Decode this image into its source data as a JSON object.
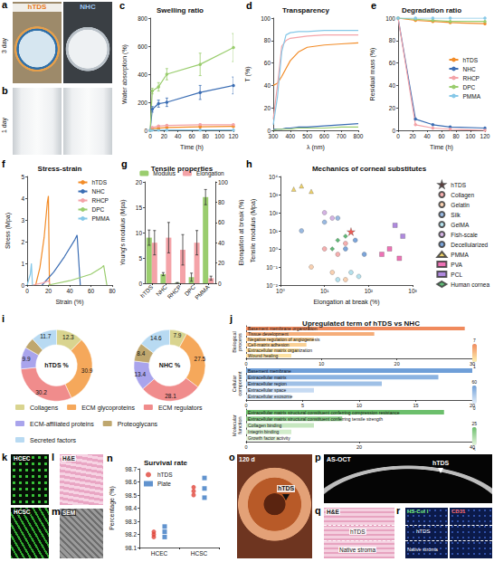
{
  "chart_data": [
    {
      "panel": "c",
      "type": "line",
      "title": "Swelling ratio",
      "x_label": "Time (h)",
      "y_label": "Water absorption (%)",
      "x": [
        0,
        3,
        12,
        24,
        72,
        120
      ],
      "xlim": [
        0,
        120
      ],
      "xticks": [
        0,
        20,
        40,
        60,
        80,
        100,
        120
      ],
      "ylim": [
        0,
        800
      ],
      "yticks": [
        0,
        200,
        400,
        600,
        800
      ],
      "marker": "circle",
      "grid": false,
      "series": [
        {
          "color": "#F28C28",
          "values": [
            0,
            10,
            15,
            20,
            25,
            28
          ],
          "errors": [
            0,
            3,
            4,
            4,
            5,
            5
          ]
        },
        {
          "color": "#3C6EB4",
          "values": [
            0,
            150,
            190,
            200,
            270,
            320
          ],
          "errors": [
            0,
            20,
            25,
            30,
            50,
            60
          ]
        },
        {
          "color": "#F4A3A8",
          "values": [
            0,
            20,
            30,
            35,
            40,
            40
          ],
          "errors": [
            0,
            5,
            5,
            5,
            6,
            6
          ]
        },
        {
          "color": "#9ACD6E",
          "values": [
            0,
            280,
            310,
            400,
            470,
            590
          ],
          "errors": [
            0,
            20,
            30,
            40,
            80,
            100
          ]
        },
        {
          "color": "#86C8E8",
          "values": [
            0,
            1,
            1,
            2,
            2,
            2
          ],
          "errors": [
            0,
            0,
            0,
            0,
            0,
            0
          ]
        }
      ]
    },
    {
      "panel": "d",
      "type": "line",
      "title": "Transparency",
      "x_label": "λ (nm)",
      "y_label": "T (%)",
      "x": [
        300,
        325,
        350,
        375,
        400,
        450,
        500,
        600,
        700,
        800
      ],
      "xlim": [
        300,
        800
      ],
      "xticks": [
        300,
        400,
        500,
        600,
        700,
        800
      ],
      "ylim": [
        0,
        100
      ],
      "yticks": [
        0,
        20,
        40,
        60,
        80,
        100
      ],
      "marker": "none",
      "grid": false,
      "series": [
        {
          "color": "#F28C28",
          "values": [
            40,
            42,
            48,
            55,
            62,
            70,
            74,
            76,
            77,
            78
          ]
        },
        {
          "color": "#3C6EB4",
          "values": [
            1,
            1,
            1,
            2,
            2,
            3,
            3,
            4,
            5,
            6
          ]
        },
        {
          "color": "#F4A3A8",
          "values": [
            10,
            40,
            75,
            80,
            82,
            83,
            84,
            85,
            85,
            85
          ]
        },
        {
          "color": "#9ACD6E",
          "values": [
            0,
            1,
            1,
            1,
            1,
            2,
            2,
            2,
            3,
            3
          ]
        },
        {
          "color": "#86C8E8",
          "values": [
            5,
            30,
            70,
            85,
            87,
            88,
            88,
            89,
            89,
            89
          ]
        }
      ]
    },
    {
      "panel": "e",
      "type": "line",
      "title": "Degradation ratio",
      "x_label": "Time (h)",
      "y_label": "Residual mass (%)",
      "x": [
        0,
        24,
        48,
        72,
        120
      ],
      "xlim": [
        0,
        120
      ],
      "xticks": [
        0,
        20,
        40,
        60,
        80,
        100,
        120
      ],
      "ylim": [
        0,
        100
      ],
      "yticks": [
        0,
        20,
        40,
        60,
        80,
        100
      ],
      "marker": "circle",
      "grid": false,
      "legend": "right",
      "series": [
        {
          "name": "hTDS",
          "color": "#F28C28",
          "values": [
            100,
            98,
            97,
            96,
            95
          ]
        },
        {
          "name": "NHC",
          "color": "#3C6EB4",
          "values": [
            100,
            10,
            5,
            3,
            2
          ]
        },
        {
          "name": "RHCP",
          "color": "#F4A3A8",
          "values": [
            100,
            5,
            2,
            1,
            0
          ]
        },
        {
          "name": "DPC",
          "color": "#9ACD6E",
          "values": [
            100,
            99,
            98,
            97,
            97
          ]
        },
        {
          "name": "PMMA",
          "color": "#86C8E8",
          "values": [
            100,
            100,
            100,
            100,
            100
          ]
        }
      ]
    },
    {
      "panel": "f",
      "type": "line",
      "title": "Stress-strain",
      "x_label": "Strain (%)",
      "y_label": "Stress (Mpa)",
      "xlim": [
        0,
        80
      ],
      "xticks": [
        0,
        20,
        40,
        60,
        80
      ],
      "ylim": [
        0,
        5
      ],
      "yticks": [
        0,
        1,
        2,
        3,
        4,
        5
      ],
      "marker": "none",
      "grid": false,
      "legend": "top-right",
      "series": [
        {
          "name": "hTDS",
          "color": "#F28C28",
          "x": [
            8,
            12,
            16,
            19,
            20,
            21
          ],
          "values": [
            0,
            0.8,
            2.2,
            3.8,
            4.1,
            0
          ]
        },
        {
          "name": "NHC",
          "color": "#3C6EB4",
          "x": [
            14,
            25,
            35,
            45,
            47,
            50
          ],
          "values": [
            0,
            0.6,
            1.3,
            2.1,
            2.3,
            0
          ]
        },
        {
          "name": "RHCP",
          "color": "#F4A3A8",
          "x": [
            5,
            15,
            20,
            22
          ],
          "values": [
            0,
            0.1,
            0.2,
            0
          ]
        },
        {
          "name": "DPC",
          "color": "#9ACD6E",
          "x": [
            20,
            40,
            60,
            70,
            72,
            75
          ],
          "values": [
            0,
            0.2,
            0.5,
            0.8,
            0.9,
            0
          ]
        },
        {
          "name": "PMMA",
          "color": "#86C8E8",
          "x": [
            0,
            3,
            4,
            5
          ],
          "values": [
            0,
            0.5,
            1,
            0
          ]
        }
      ]
    },
    {
      "panel": "g",
      "type": "bar",
      "title": "Tensile properties",
      "categories": [
        "hTDS",
        "NHC",
        "RHCP",
        "DPC",
        "PMMA"
      ],
      "y_label": "Young's modulus (Mpa)",
      "y2_label": "Elongation at break (%)",
      "ylim": [
        0,
        20
      ],
      "yticks": [
        0,
        5,
        10,
        15,
        20
      ],
      "y2lim": [
        0,
        100
      ],
      "y2ticks": [
        0,
        20,
        40,
        60,
        80,
        100
      ],
      "grid": false,
      "legend": "top",
      "series": [
        {
          "name": "Modulus",
          "color": "#9ACD6E",
          "values": [
            9,
            1.8,
            0.1,
            1.2,
            17
          ],
          "errors": [
            1.5,
            0.3,
            0.05,
            0.8,
            1.5
          ]
        },
        {
          "name": "Elongation",
          "color": "#F4A3A8",
          "axis": "y2",
          "values": [
            40,
            45,
            33,
            40,
            5
          ],
          "errors": [
            12,
            15,
            15,
            12,
            2
          ]
        }
      ]
    },
    {
      "panel": "h",
      "type": "scatter",
      "title": "Mechanics of corneal substitutes",
      "x_label": "Elongation at break (%)",
      "y_label": "Tensile modulus (Mpa)",
      "log": true,
      "grid": false,
      "legend": "right",
      "xlim": [
        1,
        1000
      ],
      "xticks": [
        {
          "value": 1,
          "label": "10⁰"
        },
        {
          "value": 10,
          "label": "10¹"
        },
        {
          "value": 100,
          "label": "10²"
        },
        {
          "value": 1000,
          "label": "10³"
        }
      ],
      "ylim": [
        0.01,
        10000
      ],
      "yticks": [
        {
          "value": 0.01,
          "label": "10⁻²"
        },
        {
          "value": 0.1,
          "label": "10⁻¹"
        },
        {
          "value": 1,
          "label": "10⁰"
        },
        {
          "value": 10,
          "label": "10¹"
        },
        {
          "value": 100,
          "label": "10²"
        },
        {
          "value": 1000,
          "label": "10³"
        },
        {
          "value": 10000,
          "label": "10⁴"
        }
      ],
      "series": [
        {
          "name": "hTDS",
          "color": "#E6332A",
          "marker": "star",
          "x": [
            40
          ],
          "values": [
            9
          ]
        },
        {
          "name": "Collagen",
          "color": "#F29B9B",
          "marker": "circle",
          "x": [
            10,
            20,
            30
          ],
          "values": [
            1,
            0.5,
            2
          ]
        },
        {
          "name": "Gelatin",
          "color": "#F7C59F",
          "marker": "circle",
          "x": [
            5,
            15,
            30
          ],
          "values": [
            0.1,
            0.05,
            0.02
          ]
        },
        {
          "name": "Silk",
          "color": "#7FA7D9",
          "marker": "circle",
          "x": [
            3,
            10,
            20
          ],
          "values": [
            10,
            30,
            50
          ]
        },
        {
          "name": "GelMA",
          "color": "#A3D9E8",
          "marker": "circle",
          "x": [
            20,
            40,
            60
          ],
          "values": [
            0.02,
            0.05,
            0.03
          ]
        },
        {
          "name": "Fish-scale",
          "color": "#C9A0DC",
          "marker": "circle",
          "x": [
            10,
            15
          ],
          "values": [
            100,
            50
          ]
        },
        {
          "name": "Decellularized",
          "color": "#5B8FD1",
          "marker": "circle",
          "x": [
            30,
            50,
            80
          ],
          "values": [
            1,
            3,
            0.5
          ]
        },
        {
          "name": "PMMA",
          "color": "#E8C547",
          "marker": "triangle",
          "x": [
            2,
            3,
            5
          ],
          "values": [
            2000,
            3000,
            1500
          ]
        },
        {
          "name": "PVA",
          "color": "#E84FA3",
          "marker": "square",
          "x": [
            200,
            300,
            500
          ],
          "values": [
            0.5,
            1,
            0.3
          ]
        },
        {
          "name": "PCL",
          "color": "#9B6BD6",
          "marker": "square",
          "x": [
            400,
            600
          ],
          "values": [
            20,
            5
          ]
        },
        {
          "name": "Human cornea",
          "color": "#3AA655",
          "marker": "diamond",
          "x": [
            20,
            30,
            15
          ],
          "values": [
            3,
            5,
            1
          ]
        }
      ]
    },
    {
      "panel": "i",
      "type": "pie",
      "data_labels": true,
      "legend": "bottom",
      "categories": [
        "Collagens",
        "ECM glycoproteins",
        "ECM regulators",
        "ECM-affiliated proteins",
        "Proteoglycans",
        "Secreted factors"
      ],
      "colors": [
        "#D9D48F",
        "#F5A85B",
        "#F08C8C",
        "#A9A4EC",
        "#BFA76E",
        "#B8DAF2"
      ],
      "series": [
        {
          "name": "hTDS %",
          "values": [
            12.3,
            30.9,
            30.2,
            9.9,
            5.0,
            11.7
          ],
          "value_labels": [
            "12.3",
            "30.9",
            "30.2",
            "9.9",
            null,
            "11.7"
          ]
        },
        {
          "name": "NHC %",
          "values": [
            7.9,
            27.5,
            28.1,
            13.4,
            8.4,
            14.6
          ]
        }
      ]
    },
    {
      "panel": "j",
      "type": "bar",
      "orientation": "horizontal",
      "title": "Upregulated term of hTDS vs NHC",
      "grid": false,
      "groups": [
        {
          "name": "Biological process",
          "categories": [
            "Basement membrane organization",
            "Tissue development",
            "Negative regulation of angiogenesis",
            "Cell-matrix adhesion",
            "Extracellular matrix organization",
            "Wound healing"
          ],
          "values": [
            29,
            17,
            9,
            8,
            7,
            6
          ],
          "color_values": [
            7,
            5,
            3,
            3,
            2,
            2
          ],
          "color_range": [
            1,
            7
          ],
          "xlim": [
            0,
            30
          ],
          "xticks": [
            0,
            10,
            20,
            30
          ]
        },
        {
          "name": "Cellular component",
          "categories": [
            "Basement membrane",
            "Extracellular matrix",
            "Extracellular region",
            "Extracellular space",
            "Extracellular exosome"
          ],
          "values": [
            20,
            17,
            12,
            6,
            4
          ],
          "color_values": [
            60,
            45,
            35,
            15,
            10
          ],
          "color_range": [
            0,
            60
          ],
          "xlim": [
            0,
            20
          ],
          "xticks": [
            0,
            5,
            10,
            15,
            20
          ]
        },
        {
          "name": "Molecular function",
          "categories": [
            "Extracellular matrix structural constituent conferring compression resistance",
            "Extracellular matrix structural constituent conferring tensile strength",
            "Collagen binding",
            "Integrin binding",
            "Growth factor activity"
          ],
          "values": [
            35,
            17,
            12,
            8,
            6
          ],
          "color_values": [
            25,
            20,
            10,
            8,
            5
          ],
          "color_range": [
            5,
            25
          ],
          "xlim": [
            0,
            40
          ],
          "xticks": [
            0,
            20,
            40
          ]
        }
      ]
    },
    {
      "panel": "n",
      "type": "scatter",
      "title": "Survival rate",
      "y_label": "Percentage (%)",
      "categories": [
        "HCEC",
        "HCSC"
      ],
      "ylim": [
        98.1,
        98.7
      ],
      "yticks": [
        98.1,
        98.2,
        98.3,
        98.4,
        98.5,
        98.6,
        98.7
      ],
      "grid": false,
      "legend": "top-left",
      "series": [
        {
          "name": "hTDS",
          "color": "#E0453A",
          "marker": "circle",
          "values": [
            [
              98.22,
              98.18,
              98.2
            ],
            [
              98.56,
              98.5,
              98.53
            ]
          ]
        },
        {
          "name": "Plate",
          "color": "#3A78C2",
          "marker": "square",
          "values": [
            [
              98.26,
              98.18,
              98.22
            ],
            [
              98.63,
              98.48,
              98.55
            ]
          ]
        }
      ]
    }
  ],
  "images": [
    {
      "panel": "a",
      "row_label": "3 day",
      "labels": [
        "hTDS",
        "NHC"
      ]
    },
    {
      "panel": "b",
      "row_label": "1 day"
    },
    {
      "panel": "k",
      "labels": [
        "HCEC",
        "HCSC"
      ]
    },
    {
      "panel": "l",
      "labels": [
        "H&E"
      ]
    },
    {
      "panel": "m",
      "labels": [
        "SEM"
      ]
    },
    {
      "panel": "o",
      "labels": [
        "120 d",
        "hTDS"
      ]
    },
    {
      "panel": "p",
      "labels": [
        "AS-OCT",
        "hTDS"
      ]
    },
    {
      "panel": "q",
      "labels": [
        "H&E",
        "hTDS",
        "Native stroma"
      ]
    },
    {
      "panel": "r",
      "labels": [
        "HS-Col I",
        "CD31",
        "hTDS",
        "Native stroma"
      ]
    }
  ]
}
